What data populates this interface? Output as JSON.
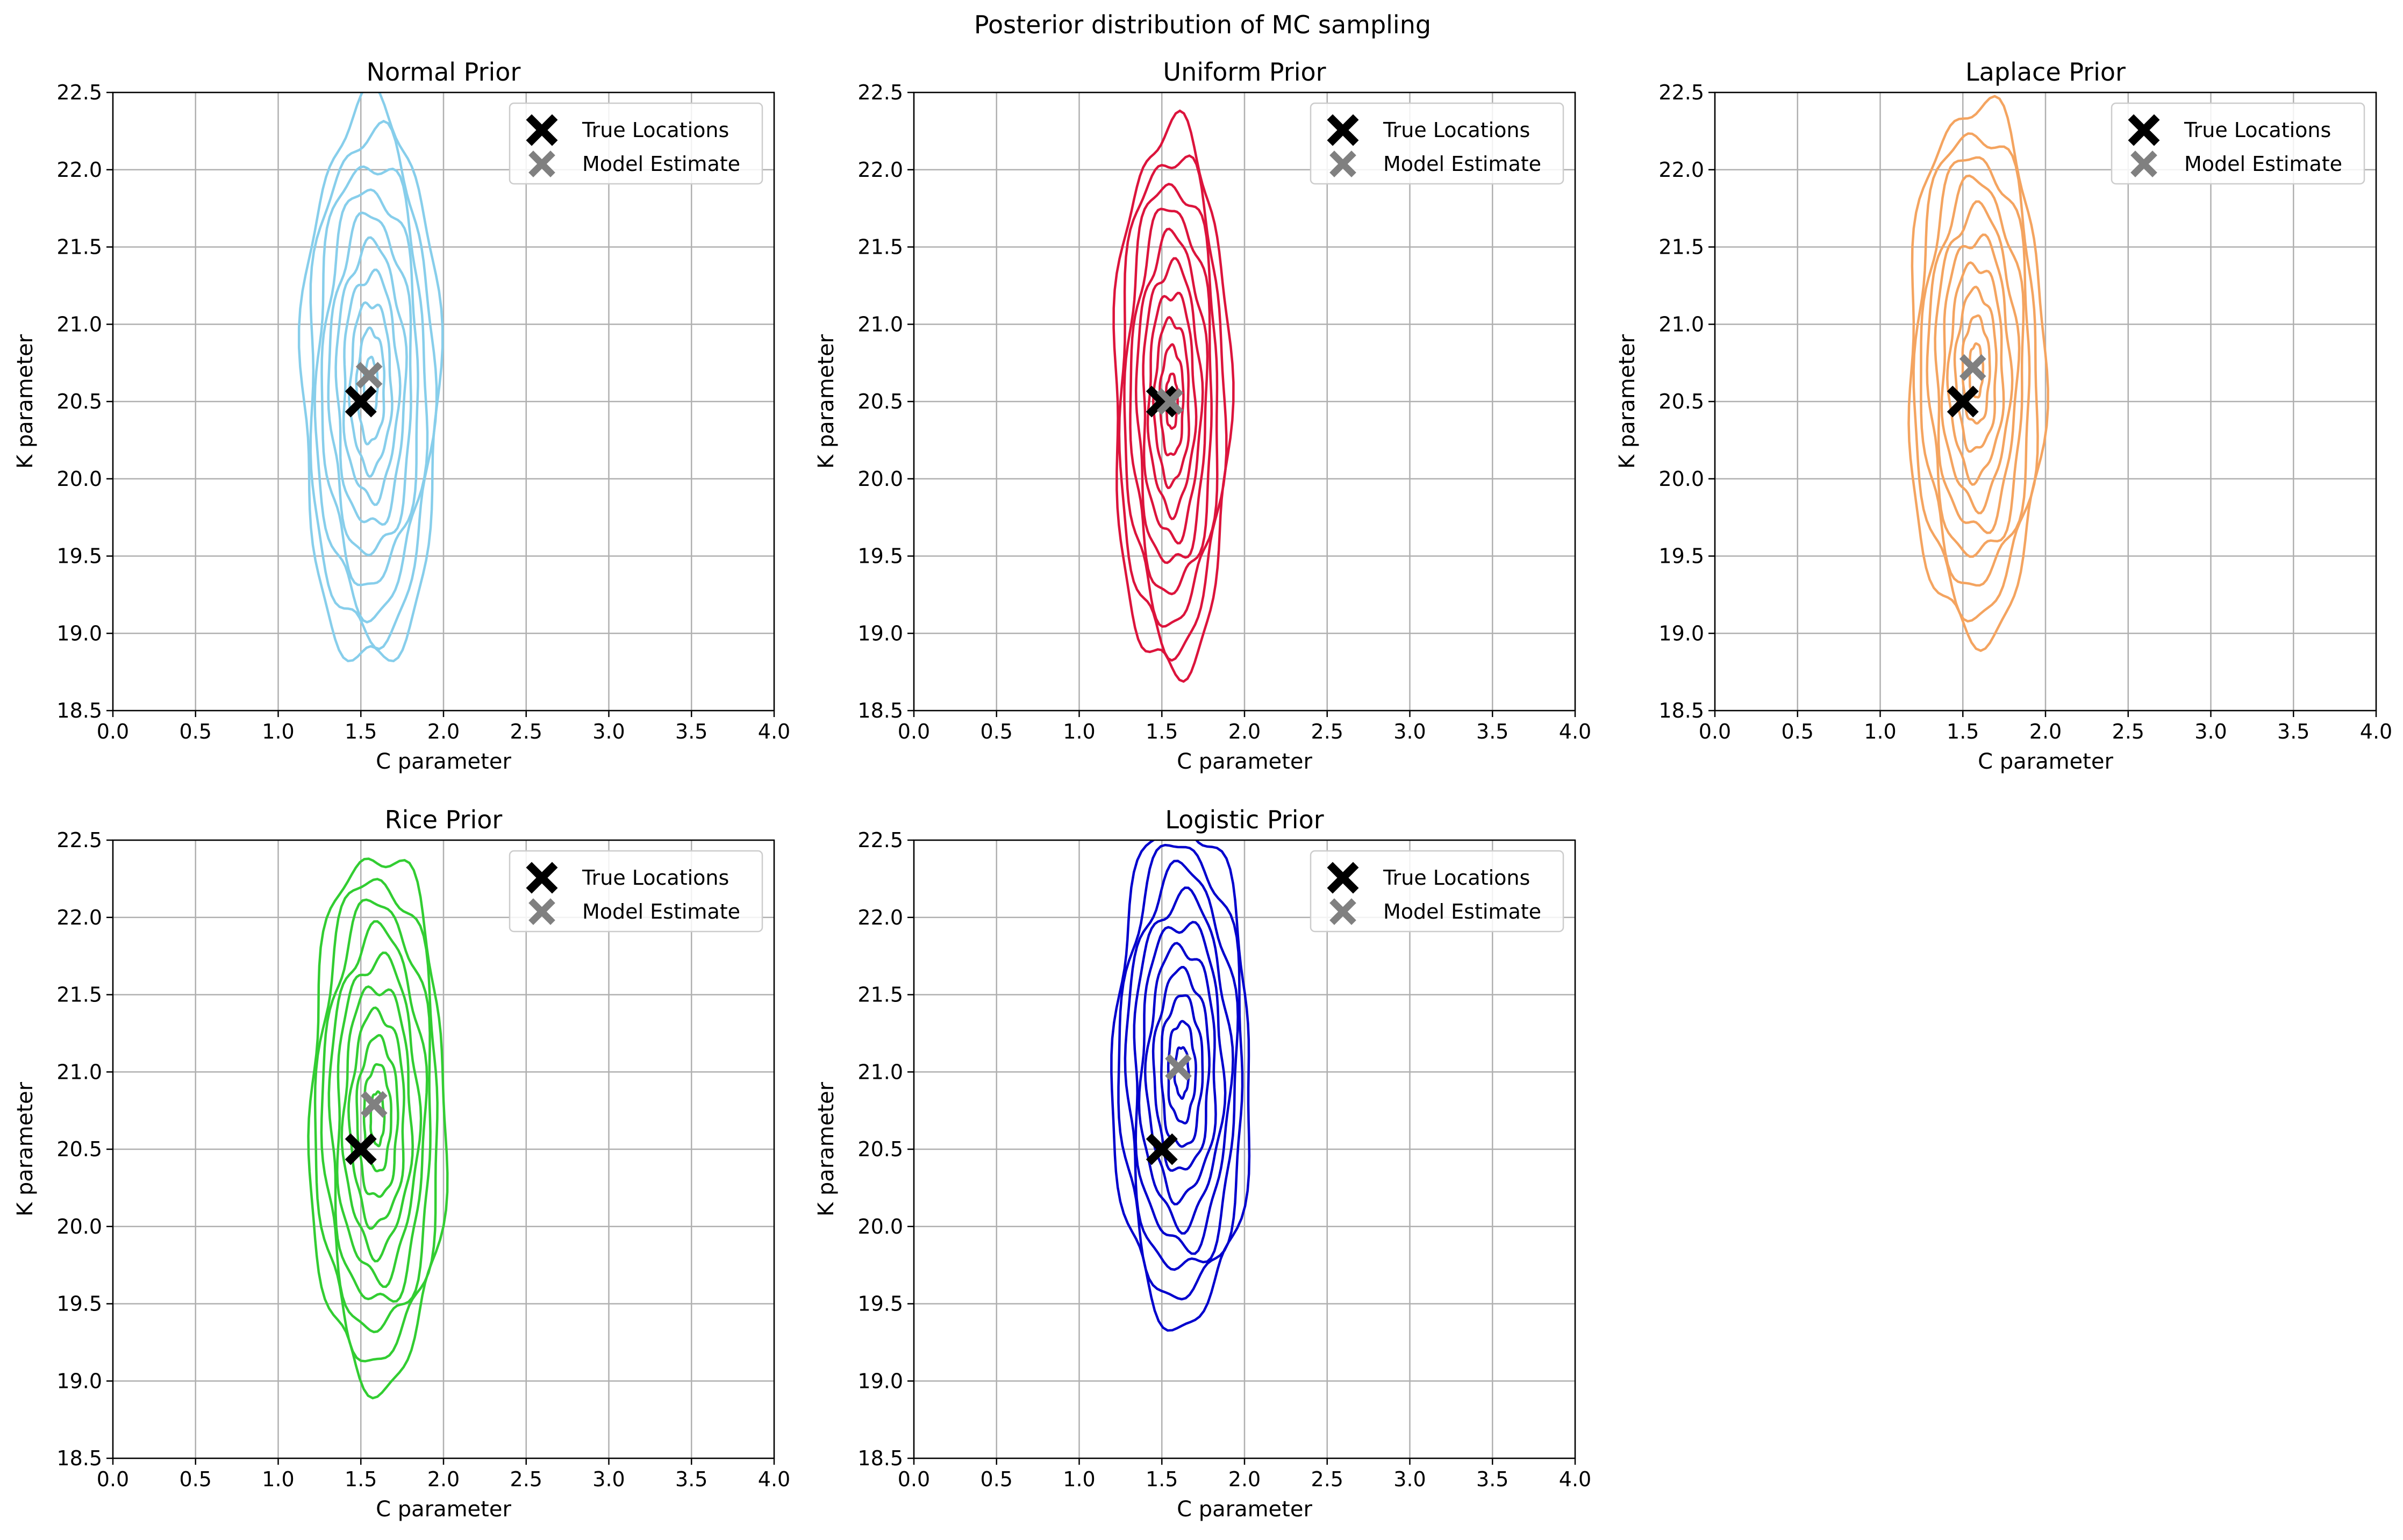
{
  "figure": {
    "suptitle": "Posterior distribution of MC sampling"
  },
  "legend_labels": {
    "true": "True Locations",
    "estimate": "Model Estimate"
  },
  "colors": {
    "true_marker": "#000000",
    "estimate_marker": "#808080",
    "grid": "#b0b0b0"
  },
  "chart_data": [
    {
      "type": "contour",
      "title": "Normal Prior",
      "color": "#87CEEB",
      "xlabel": "C parameter",
      "ylabel": "K parameter",
      "xlim": [
        0,
        4
      ],
      "ylim": [
        18.5,
        22.5
      ],
      "xticks": [
        "0.0",
        "0.5",
        "1.0",
        "1.5",
        "2.0",
        "2.5",
        "3.0",
        "3.5",
        "4.0"
      ],
      "yticks": [
        "18.5",
        "19.0",
        "19.5",
        "20.0",
        "20.5",
        "21.0",
        "21.5",
        "22.0",
        "22.5"
      ],
      "grid": true,
      "legend": "upper-right",
      "true_location": [
        1.5,
        20.5
      ],
      "model_estimate": [
        1.55,
        20.67
      ],
      "contour_center": [
        1.56,
        20.6
      ],
      "contour_levels": 10,
      "outer_extent": {
        "c": [
          1.15,
          1.98
        ],
        "k": [
          18.83,
          22.47
        ]
      }
    },
    {
      "type": "contour",
      "title": "Uniform Prior",
      "color": "#DC143C",
      "xlabel": "C parameter",
      "ylabel": "K parameter",
      "xlim": [
        0,
        4
      ],
      "ylim": [
        18.5,
        22.5
      ],
      "xticks": [
        "0.0",
        "0.5",
        "1.0",
        "1.5",
        "2.0",
        "2.5",
        "3.0",
        "3.5",
        "4.0"
      ],
      "yticks": [
        "18.5",
        "19.0",
        "19.5",
        "20.0",
        "20.5",
        "21.0",
        "21.5",
        "22.0",
        "22.5"
      ],
      "grid": true,
      "legend": "upper-right",
      "true_location": [
        1.5,
        20.5
      ],
      "model_estimate": [
        1.55,
        20.5
      ],
      "contour_center": [
        1.56,
        20.5
      ],
      "contour_levels": 10,
      "outer_extent": {
        "c": [
          1.2,
          1.9
        ],
        "k": [
          18.74,
          22.28
        ]
      }
    },
    {
      "type": "contour",
      "title": "Laplace Prior",
      "color": "#F4A460",
      "xlabel": "C parameter",
      "ylabel": "K parameter",
      "xlim": [
        0,
        4
      ],
      "ylim": [
        18.5,
        22.5
      ],
      "xticks": [
        "0.0",
        "0.5",
        "1.0",
        "1.5",
        "2.0",
        "2.5",
        "3.0",
        "3.5",
        "4.0"
      ],
      "yticks": [
        "18.5",
        "19.0",
        "19.5",
        "20.0",
        "20.5",
        "21.0",
        "21.5",
        "22.0",
        "22.5"
      ],
      "grid": true,
      "legend": "upper-right",
      "true_location": [
        1.5,
        20.5
      ],
      "model_estimate": [
        1.56,
        20.72
      ],
      "contour_center": [
        1.58,
        20.7
      ],
      "contour_levels": 10,
      "outer_extent": {
        "c": [
          1.16,
          1.98
        ],
        "k": [
          19.04,
          22.5
        ]
      }
    },
    {
      "type": "contour",
      "title": "Rice Prior",
      "color": "#32CD32",
      "xlabel": "C parameter",
      "ylabel": "K parameter",
      "xlim": [
        0,
        4
      ],
      "ylim": [
        18.5,
        22.5
      ],
      "xticks": [
        "0.0",
        "0.5",
        "1.0",
        "1.5",
        "2.0",
        "2.5",
        "3.0",
        "3.5",
        "4.0"
      ],
      "yticks": [
        "18.5",
        "19.0",
        "19.5",
        "20.0",
        "20.5",
        "21.0",
        "21.5",
        "22.0",
        "22.5"
      ],
      "grid": true,
      "legend": "upper-right",
      "true_location": [
        1.5,
        20.5
      ],
      "model_estimate": [
        1.58,
        20.79
      ],
      "contour_center": [
        1.6,
        20.7
      ],
      "contour_levels": 10,
      "outer_extent": {
        "c": [
          1.2,
          2.02
        ],
        "k": [
          19.05,
          22.5
        ]
      }
    },
    {
      "type": "contour",
      "title": "Logistic Prior",
      "color": "#0000CD",
      "xlabel": "C parameter",
      "ylabel": "K parameter",
      "xlim": [
        0,
        4
      ],
      "ylim": [
        18.5,
        22.5
      ],
      "xticks": [
        "0.0",
        "0.5",
        "1.0",
        "1.5",
        "2.0",
        "2.5",
        "3.0",
        "3.5",
        "4.0"
      ],
      "yticks": [
        "18.5",
        "19.0",
        "19.5",
        "20.0",
        "20.5",
        "21.0",
        "21.5",
        "22.0",
        "22.5"
      ],
      "grid": true,
      "legend": "upper-right",
      "true_location": [
        1.5,
        20.5
      ],
      "model_estimate": [
        1.6,
        21.03
      ],
      "contour_center": [
        1.62,
        21.0
      ],
      "contour_levels": 10,
      "outer_extent": {
        "c": [
          1.22,
          2.05
        ],
        "k": [
          19.25,
          22.5
        ]
      }
    }
  ]
}
